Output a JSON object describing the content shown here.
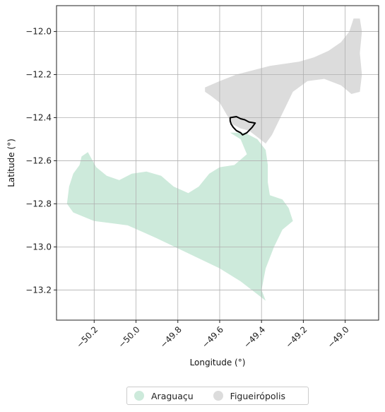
{
  "chart_data": {
    "type": "map",
    "xlabel": "Longitude (°)",
    "ylabel": "Latitude (°)",
    "xlim": [
      -50.38,
      -48.84
    ],
    "ylim": [
      -13.34,
      -11.88
    ],
    "xticks": [
      -50.2,
      -50.0,
      -49.8,
      -49.6,
      -49.4,
      -49.2,
      -49.0
    ],
    "xtick_labels": [
      "−50.2",
      "−50.0",
      "−49.8",
      "−49.6",
      "−49.4",
      "−49.2",
      "−49.0"
    ],
    "yticks": [
      -12.0,
      -12.2,
      -12.4,
      -12.6,
      -12.8,
      -13.0,
      -13.2
    ],
    "ytick_labels": [
      "−12.0",
      "−12.2",
      "−12.4",
      "−12.6",
      "−12.8",
      "−13.0",
      "−13.2"
    ],
    "grid": true,
    "legend_position": "bottom-center",
    "regions": [
      {
        "name": "Araguaçu",
        "color": "#cdeadb",
        "coords": [
          [
            -49.55,
            -12.47
          ],
          [
            -49.5,
            -12.5
          ],
          [
            -49.47,
            -12.57
          ],
          [
            -49.53,
            -12.62
          ],
          [
            -49.6,
            -12.63
          ],
          [
            -49.65,
            -12.66
          ],
          [
            -49.7,
            -12.72
          ],
          [
            -49.75,
            -12.75
          ],
          [
            -49.82,
            -12.72
          ],
          [
            -49.88,
            -12.67
          ],
          [
            -49.95,
            -12.65
          ],
          [
            -50.02,
            -12.66
          ],
          [
            -50.08,
            -12.69
          ],
          [
            -50.14,
            -12.67
          ],
          [
            -50.19,
            -12.63
          ],
          [
            -50.23,
            -12.56
          ],
          [
            -50.26,
            -12.58
          ],
          [
            -50.27,
            -12.62
          ],
          [
            -50.3,
            -12.66
          ],
          [
            -50.32,
            -12.72
          ],
          [
            -50.33,
            -12.8
          ],
          [
            -50.3,
            -12.84
          ],
          [
            -50.25,
            -12.86
          ],
          [
            -50.2,
            -12.88
          ],
          [
            -50.12,
            -12.89
          ],
          [
            -50.04,
            -12.9
          ],
          [
            -49.97,
            -12.93
          ],
          [
            -49.9,
            -12.96
          ],
          [
            -49.75,
            -13.03
          ],
          [
            -49.6,
            -13.1
          ],
          [
            -49.5,
            -13.16
          ],
          [
            -49.42,
            -13.22
          ],
          [
            -49.38,
            -13.25
          ],
          [
            -49.4,
            -13.2
          ],
          [
            -49.38,
            -13.1
          ],
          [
            -49.34,
            -13.0
          ],
          [
            -49.3,
            -12.92
          ],
          [
            -49.25,
            -12.88
          ],
          [
            -49.27,
            -12.82
          ],
          [
            -49.3,
            -12.78
          ],
          [
            -49.36,
            -12.76
          ],
          [
            -49.37,
            -12.7
          ],
          [
            -49.37,
            -12.62
          ],
          [
            -49.38,
            -12.55
          ],
          [
            -49.42,
            -12.5
          ],
          [
            -49.48,
            -12.47
          ]
        ]
      },
      {
        "name": "Figueirópolis",
        "color": "#dcdcdc",
        "coords": [
          [
            -49.67,
            -12.26
          ],
          [
            -49.6,
            -12.23
          ],
          [
            -49.52,
            -12.2
          ],
          [
            -49.44,
            -12.18
          ],
          [
            -49.36,
            -12.16
          ],
          [
            -49.29,
            -12.15
          ],
          [
            -49.22,
            -12.14
          ],
          [
            -49.15,
            -12.12
          ],
          [
            -49.08,
            -12.09
          ],
          [
            -49.02,
            -12.05
          ],
          [
            -48.98,
            -12.0
          ],
          [
            -48.96,
            -11.94
          ],
          [
            -48.93,
            -11.94
          ],
          [
            -48.92,
            -12.0
          ],
          [
            -48.93,
            -12.1
          ],
          [
            -48.92,
            -12.2
          ],
          [
            -48.93,
            -12.28
          ],
          [
            -48.97,
            -12.29
          ],
          [
            -49.02,
            -12.25
          ],
          [
            -49.1,
            -12.22
          ],
          [
            -49.18,
            -12.23
          ],
          [
            -49.25,
            -12.28
          ],
          [
            -49.3,
            -12.38
          ],
          [
            -49.35,
            -12.48
          ],
          [
            -49.38,
            -12.52
          ],
          [
            -49.42,
            -12.49
          ],
          [
            -49.46,
            -12.46
          ],
          [
            -49.5,
            -12.45
          ],
          [
            -49.54,
            -12.43
          ],
          [
            -49.57,
            -12.38
          ],
          [
            -49.6,
            -12.33
          ],
          [
            -49.64,
            -12.3
          ],
          [
            -49.67,
            -12.28
          ]
        ]
      }
    ],
    "highlight_outline": {
      "color": "#000000",
      "coords": [
        [
          -49.55,
          -12.4
        ],
        [
          -49.52,
          -12.395
        ],
        [
          -49.5,
          -12.405
        ],
        [
          -49.48,
          -12.41
        ],
        [
          -49.46,
          -12.42
        ],
        [
          -49.43,
          -12.425
        ],
        [
          -49.445,
          -12.445
        ],
        [
          -49.47,
          -12.47
        ],
        [
          -49.49,
          -12.48
        ],
        [
          -49.5,
          -12.47
        ],
        [
          -49.52,
          -12.46
        ],
        [
          -49.535,
          -12.445
        ],
        [
          -49.545,
          -12.43
        ],
        [
          -49.55,
          -12.415
        ]
      ]
    }
  },
  "legend": {
    "items": [
      {
        "label": "Araguaçu",
        "color": "#cdeadb"
      },
      {
        "label": "Figueirópolis",
        "color": "#dcdcdc"
      }
    ]
  }
}
